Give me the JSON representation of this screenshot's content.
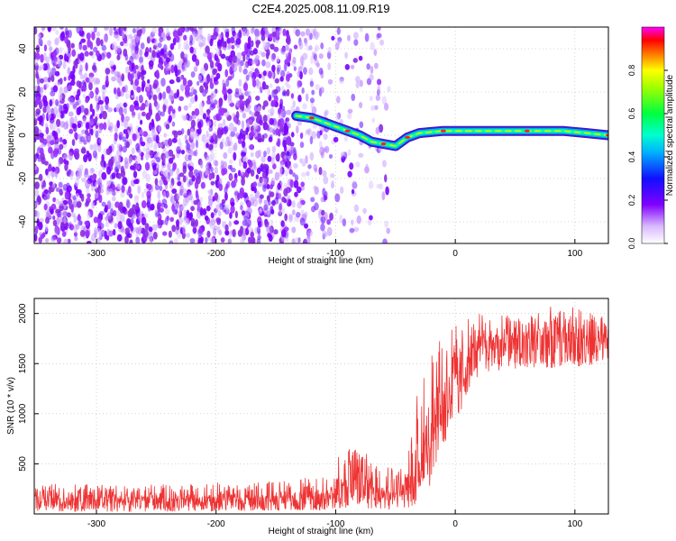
{
  "figure": {
    "title": "C2E4.2025.008.11.09.R19"
  },
  "chart_data": [
    {
      "type": "heatmap",
      "xlabel": "Height of straight line (km)",
      "ylabel": "Frequency (Hz)",
      "xlim": [
        -352,
        128
      ],
      "ylim": [
        -50,
        50
      ],
      "xticks": [
        -300,
        -200,
        -100,
        0,
        100
      ],
      "yticks": [
        -40,
        -20,
        0,
        20,
        40
      ],
      "colorbar": {
        "label": "Normalized spectral amplitude",
        "range": [
          0,
          1
        ],
        "ticks": [
          0.0,
          0.2,
          0.4,
          0.6,
          0.8
        ],
        "colormap": "rainbow (purple-blue-cyan-green-yellow-red-magenta)"
      },
      "signal_track": [
        {
          "x": -133,
          "y": 9
        },
        {
          "x": -120,
          "y": 8
        },
        {
          "x": -110,
          "y": 6
        },
        {
          "x": -100,
          "y": 4
        },
        {
          "x": -90,
          "y": 2
        },
        {
          "x": -80,
          "y": 0
        },
        {
          "x": -70,
          "y": -3
        },
        {
          "x": -60,
          "y": -4
        },
        {
          "x": -50,
          "y": -5
        },
        {
          "x": -45,
          "y": -3
        },
        {
          "x": -40,
          "y": -1
        },
        {
          "x": -30,
          "y": 1
        },
        {
          "x": -20,
          "y": 1.5
        },
        {
          "x": -10,
          "y": 2
        },
        {
          "x": 0,
          "y": 2
        },
        {
          "x": 30,
          "y": 2
        },
        {
          "x": 60,
          "y": 2
        },
        {
          "x": 90,
          "y": 2
        },
        {
          "x": 110,
          "y": 1
        },
        {
          "x": 128,
          "y": 0
        }
      ],
      "noise_regions": [
        {
          "x_from": -352,
          "x_to": -135,
          "density": "high"
        },
        {
          "x_from": -135,
          "x_to": -105,
          "density": "medium"
        },
        {
          "x_from": -105,
          "x_to": -55,
          "density": "low"
        }
      ],
      "grid": true
    },
    {
      "type": "line",
      "xlabel": "Height of straight line (km)",
      "ylabel": "SNR (10 * v/v)",
      "xlim": [
        -352,
        128
      ],
      "ylim": [
        0,
        2150
      ],
      "xticks": [
        -300,
        -200,
        -100,
        0,
        100
      ],
      "yticks": [
        500,
        1000,
        1500,
        2000
      ],
      "series": [
        {
          "color": "#ee3333",
          "envelope": [
            {
              "x": -352,
              "low": 20,
              "mean": 150,
              "high": 300
            },
            {
              "x": -250,
              "low": 20,
              "mean": 150,
              "high": 300
            },
            {
              "x": -150,
              "low": 30,
              "mean": 160,
              "high": 330
            },
            {
              "x": -110,
              "low": 40,
              "mean": 170,
              "high": 380
            },
            {
              "x": -100,
              "low": 50,
              "mean": 250,
              "high": 550
            },
            {
              "x": -80,
              "low": 60,
              "mean": 350,
              "high": 750
            },
            {
              "x": -60,
              "low": 40,
              "mean": 250,
              "high": 520
            },
            {
              "x": -40,
              "low": 50,
              "mean": 220,
              "high": 550
            },
            {
              "x": -30,
              "low": 100,
              "mean": 500,
              "high": 1350
            },
            {
              "x": -20,
              "low": 300,
              "mean": 900,
              "high": 1700
            },
            {
              "x": -10,
              "low": 600,
              "mean": 1150,
              "high": 1800
            },
            {
              "x": 0,
              "low": 900,
              "mean": 1350,
              "high": 1900
            },
            {
              "x": 20,
              "low": 1400,
              "mean": 1700,
              "high": 2000
            },
            {
              "x": 50,
              "low": 1450,
              "mean": 1750,
              "high": 2000
            },
            {
              "x": 90,
              "low": 1450,
              "mean": 1780,
              "high": 2100
            },
            {
              "x": 128,
              "low": 1500,
              "mean": 1700,
              "high": 1950
            }
          ]
        }
      ],
      "grid": true
    }
  ]
}
